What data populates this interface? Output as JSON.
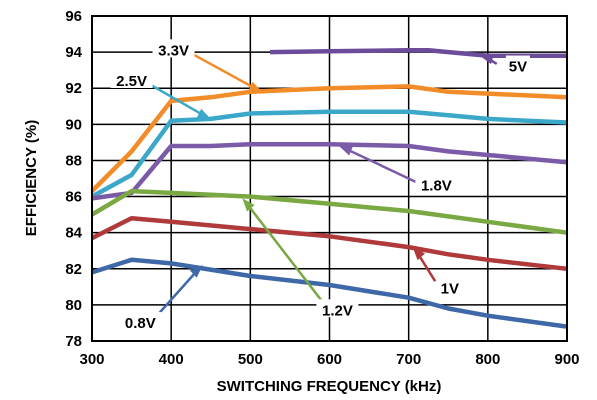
{
  "chart_data": {
    "type": "line",
    "xlabel": "SWITCHING FREQUENCY (kHz)",
    "ylabel": "EFFICIENCY (%)",
    "xlim": [
      300,
      900
    ],
    "ylim": [
      78,
      96
    ],
    "xticks": [
      "300",
      "400",
      "500",
      "600",
      "700",
      "800",
      "900"
    ],
    "yticks": [
      "78",
      "80",
      "82",
      "84",
      "86",
      "88",
      "90",
      "92",
      "94",
      "96"
    ],
    "grid": true,
    "legend": "inline-labels",
    "series": [
      {
        "name": "5V",
        "color": "#6b4c9a",
        "x": [
          525,
          600,
          700,
          725,
          800,
          900
        ],
        "y": [
          94.0,
          94.05,
          94.1,
          94.1,
          93.8,
          93.8
        ]
      },
      {
        "name": "3.3V",
        "color": "#f28c28",
        "x": [
          300,
          350,
          400,
          450,
          500,
          550,
          600,
          700,
          750,
          800,
          900
        ],
        "y": [
          86.3,
          88.5,
          91.3,
          91.5,
          91.8,
          91.9,
          92.0,
          92.1,
          91.8,
          91.7,
          91.5
        ]
      },
      {
        "name": "2.5V",
        "color": "#3ba8c9",
        "x": [
          300,
          350,
          400,
          450,
          500,
          600,
          700,
          750,
          800,
          900
        ],
        "y": [
          86.0,
          87.2,
          90.2,
          90.3,
          90.6,
          90.7,
          90.7,
          90.5,
          90.3,
          90.1
        ]
      },
      {
        "name": "1.8V",
        "color": "#7b5ba8",
        "x": [
          300,
          350,
          400,
          450,
          500,
          600,
          700,
          750,
          800,
          900
        ],
        "y": [
          85.9,
          86.2,
          88.8,
          88.8,
          88.9,
          88.9,
          88.8,
          88.5,
          88.3,
          87.9
        ]
      },
      {
        "name": "1.2V",
        "color": "#7aa843",
        "x": [
          300,
          350,
          400,
          500,
          600,
          700,
          750,
          800,
          900
        ],
        "y": [
          85.0,
          86.3,
          86.2,
          86.0,
          85.6,
          85.2,
          84.9,
          84.6,
          84.0
        ]
      },
      {
        "name": "1V",
        "color": "#b03a3a",
        "x": [
          300,
          350,
          400,
          500,
          600,
          700,
          750,
          800,
          900
        ],
        "y": [
          83.7,
          84.8,
          84.6,
          84.2,
          83.8,
          83.2,
          82.8,
          82.5,
          82.0
        ]
      },
      {
        "name": "0.8V",
        "color": "#3f68a8",
        "x": [
          300,
          350,
          400,
          500,
          600,
          700,
          750,
          800,
          900
        ],
        "y": [
          81.8,
          82.5,
          82.3,
          81.6,
          81.1,
          80.4,
          79.8,
          79.4,
          78.8
        ]
      }
    ]
  }
}
